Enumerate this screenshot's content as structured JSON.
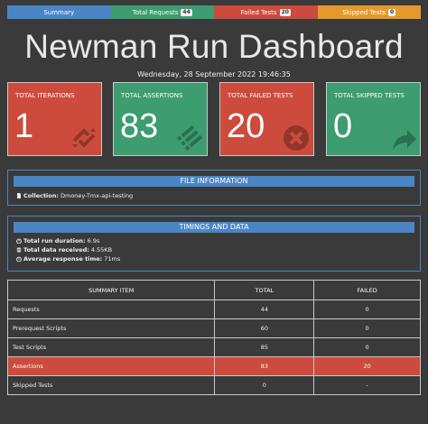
{
  "tabs": [
    {
      "label": "Summary",
      "badge": null
    },
    {
      "label": "Total Requests",
      "badge": "44"
    },
    {
      "label": "Failed Tests",
      "badge": "20"
    },
    {
      "label": "Skipped Tests",
      "badge": "0"
    }
  ],
  "header": {
    "title": "Newman Run Dashboard",
    "datestamp": "Wednesday, 28 September 2022 19:46:35"
  },
  "cards": [
    {
      "label": "TOTAL ITERATIONS",
      "value": "1",
      "color": "#cc4b3c",
      "icon": "refresh-icon"
    },
    {
      "label": "TOTAL ASSERTIONS",
      "value": "83",
      "color": "#3d9c70",
      "icon": "list-icon"
    },
    {
      "label": "TOTAL FAILED TESTS",
      "value": "20",
      "color": "#cc4b3c",
      "icon": "close-circle-icon"
    },
    {
      "label": "TOTAL SKIPPED TESTS",
      "value": "0",
      "color": "#3d9c70",
      "icon": "share-arrow-icon"
    }
  ],
  "file_info": {
    "heading": "FILE INFORMATION",
    "collection_label": "Collection:",
    "collection_value": "Dmoney-Tmx-api-testing"
  },
  "timings": {
    "heading": "TIMINGS AND DATA",
    "rows": [
      {
        "label": "Total run duration:",
        "value": "6.9s",
        "icon": "stopwatch-icon"
      },
      {
        "label": "Total data received:",
        "value": "4.55KB",
        "icon": "database-icon"
      },
      {
        "label": "Average response time:",
        "value": "71ms",
        "icon": "stopwatch-icon"
      }
    ]
  },
  "summary_table": {
    "headers": [
      "SUMMARY ITEM",
      "TOTAL",
      "FAILED"
    ],
    "rows": [
      {
        "item": "Requests",
        "total": "44",
        "failed": "0"
      },
      {
        "item": "Prerequest Scripts",
        "total": "60",
        "failed": "0"
      },
      {
        "item": "Test Scripts",
        "total": "85",
        "failed": "0"
      },
      {
        "item": "Assertions",
        "total": "83",
        "failed": "20"
      },
      {
        "item": "Skipped Tests",
        "total": "0",
        "failed": "-"
      }
    ]
  },
  "colors": {
    "background": "#3a3a3a",
    "blue": "#4a86c6",
    "green": "#3d9c70",
    "red": "#cc4b3c",
    "orange": "#e49a2a"
  }
}
